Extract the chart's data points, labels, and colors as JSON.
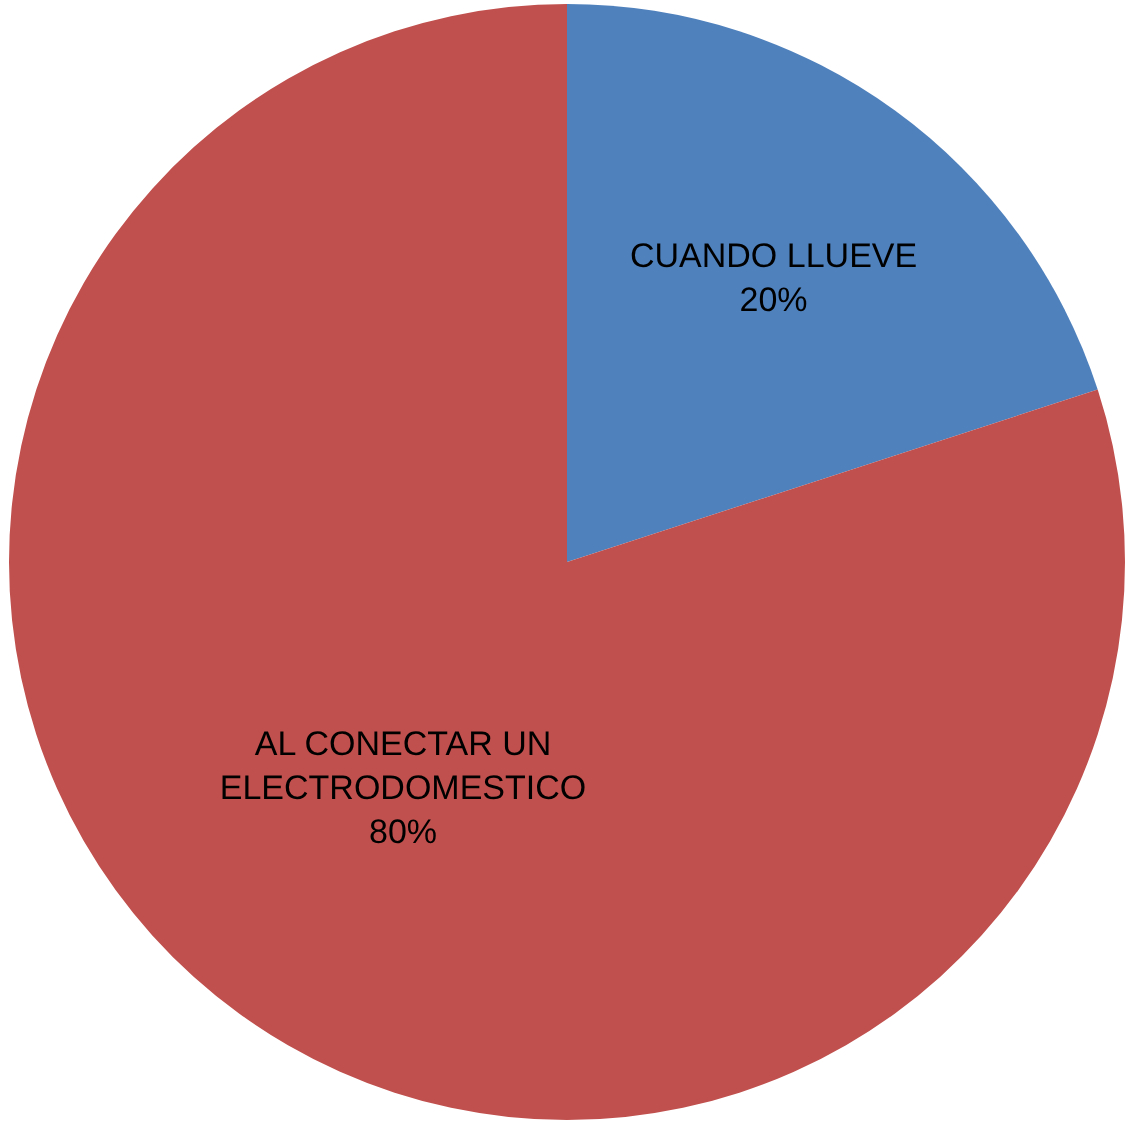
{
  "chart_data": {
    "type": "pie",
    "categories": [
      "CUANDO LLUEVE",
      "AL CONECTAR UN ELECTRODOMESTICO"
    ],
    "values": [
      20,
      80
    ],
    "colors": [
      "#4f81bd",
      "#c0504d"
    ],
    "value_labels": [
      "20%",
      "80%"
    ],
    "legend": false
  }
}
